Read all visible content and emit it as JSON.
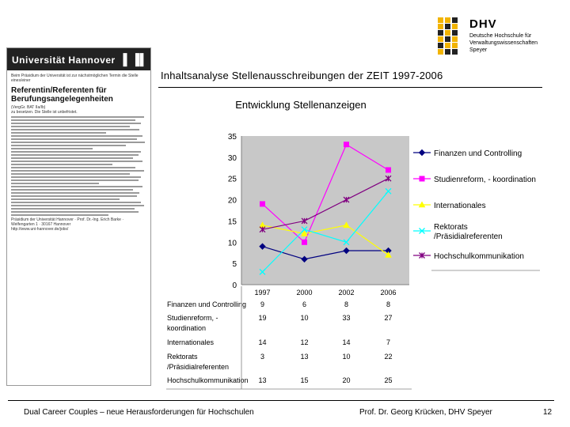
{
  "logo": {
    "name": "DHV",
    "subtitle": "Deutsche Hochschule für\nVerwaltungswissenschaften\nSpeyer",
    "color": "#f2b400"
  },
  "clipping": {
    "header": "Universität Hannover",
    "intro": "Beim Präsidium der Universität ist zur nächstmöglichen Termin die Stelle eines/einer",
    "title": "Referentin/Referenten für\nBerufungsangelegenheiten",
    "grade": "(VergGr. BAT IIa/Ib)",
    "intro2": "zu besetzen. Die Stelle ist unbefristet.",
    "contact": "Präsidium der Universität Hannover · Prof. Dr.-Ing. Erich Barke · Welfengarten 1 · 30167 Hannover",
    "url": "http://www.uni-hannover.de/jobs/"
  },
  "headline": "Inhaltsanalyse Stellenausschreibungen der ZEIT 1997-2006",
  "chart_data": {
    "type": "line",
    "title": "Entwicklung Stellenanzeigen",
    "categories": [
      "1997",
      "2000",
      "2002",
      "2006"
    ],
    "ylim": [
      0,
      35
    ],
    "yticks": [
      "0",
      "5",
      "10",
      "15",
      "20",
      "25",
      "30",
      "35"
    ],
    "grid": false,
    "legend_position": "right",
    "series": [
      {
        "name": "Finanzen und Controlling",
        "table_label": "Finanzen und Controlling",
        "values": [
          9,
          6,
          8,
          8
        ],
        "color": "#000080",
        "marker": "diamond"
      },
      {
        "name": "Studienreform, - koordination",
        "table_label": "Studienreform, -\nkoordination",
        "values": [
          19,
          10,
          33,
          27
        ],
        "color": "#ff00ff",
        "marker": "square"
      },
      {
        "name": "Internationales",
        "table_label": "Internationales",
        "values": [
          14,
          12,
          14,
          7
        ],
        "color": "#ffff00",
        "marker": "triangle"
      },
      {
        "name": "Rektorats\n/Präsidialreferenten",
        "table_label": "Rektorats\n/Präsidialreferenten",
        "values": [
          3,
          13,
          10,
          22
        ],
        "color": "#00ffff",
        "marker": "x"
      },
      {
        "name": "Hochschulkommunikation",
        "table_label": "Hochschulkommunikation",
        "values": [
          13,
          15,
          20,
          25
        ],
        "color": "#800080",
        "marker": "star"
      }
    ]
  },
  "footer": {
    "left": "Dual Career Couples – neue Herausforderungen für Hochschulen",
    "right": "Prof. Dr. Georg Krücken, DHV Speyer",
    "page": "12"
  }
}
